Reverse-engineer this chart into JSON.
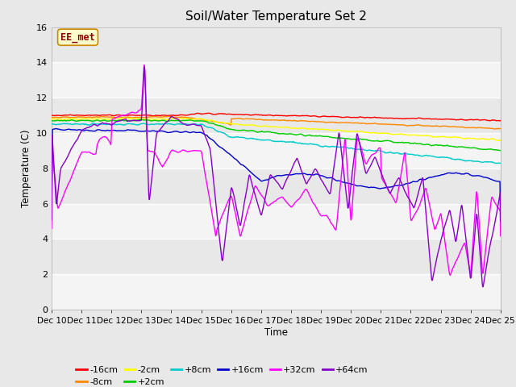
{
  "title": "Soil/Water Temperature Set 2",
  "xlabel": "Time",
  "ylabel": "Temperature (C)",
  "ylim": [
    0,
    16
  ],
  "xlim": [
    0,
    15
  ],
  "xtick_labels": [
    "Dec 10",
    "Dec 11",
    "Dec 12",
    "Dec 13",
    "Dec 14",
    "Dec 15",
    "Dec 16",
    "Dec 17",
    "Dec 18",
    "Dec 19",
    "Dec 20",
    "Dec 21",
    "Dec 22",
    "Dec 23",
    "Dec 24",
    "Dec 25"
  ],
  "ytick_labels": [
    "0",
    "2",
    "4",
    "6",
    "8",
    "10",
    "12",
    "14",
    "16"
  ],
  "ytick_vals": [
    0,
    2,
    4,
    6,
    8,
    10,
    12,
    14,
    16
  ],
  "bg_color": "#e8e8e8",
  "plot_bg_color": "#e8e8e8",
  "series": [
    {
      "label": "-16cm",
      "color": "#ff0000"
    },
    {
      "label": "-8cm",
      "color": "#ff8800"
    },
    {
      "label": "-2cm",
      "color": "#ffff00"
    },
    {
      "label": "+2cm",
      "color": "#00cc00"
    },
    {
      "label": "+8cm",
      "color": "#00cccc"
    },
    {
      "label": "+16cm",
      "color": "#0000cc"
    },
    {
      "label": "+32cm",
      "color": "#ff00ff"
    },
    {
      "label": "+64cm",
      "color": "#8800cc"
    }
  ],
  "annotation_text": "EE_met",
  "annotation_color": "#8b0000",
  "annotation_bg": "#ffffcc",
  "annotation_border": "#cc8800"
}
